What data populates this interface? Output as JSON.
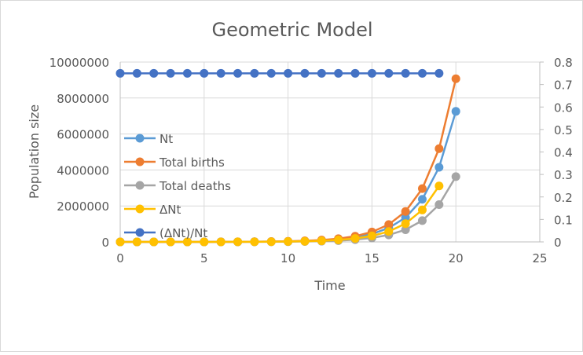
{
  "chart_data": {
    "type": "line",
    "title": "Geometric Model",
    "xlabel": "Time",
    "ylabel": "Population size",
    "xlim": [
      0,
      25
    ],
    "ylim": [
      0,
      10000000
    ],
    "y2lim": [
      0,
      0.8
    ],
    "x_ticks": [
      "0",
      "5",
      "10",
      "15",
      "20",
      "25"
    ],
    "y_ticks": [
      "0",
      "2000000",
      "4000000",
      "6000000",
      "8000000",
      "10000000"
    ],
    "y2_ticks": [
      "0",
      "0.1",
      "0.2",
      "0.3",
      "0.4",
      "0.5",
      "0.6",
      "0.7",
      "0.8"
    ],
    "grid": true,
    "legend_position": "left-inside",
    "series": [
      {
        "name": "Nt",
        "color": "#5B9BD5",
        "axis": "left",
        "x": [
          0,
          1,
          2,
          3,
          4,
          5,
          6,
          7,
          8,
          9,
          10,
          11,
          12,
          13,
          14,
          15,
          16,
          17,
          18,
          19,
          20
        ],
        "values": [
          100,
          175,
          306,
          536,
          938,
          1641,
          2872,
          5027,
          8796,
          15394,
          26939,
          47143,
          82501,
          144377,
          252659,
          442153,
          773768,
          1354094,
          2369664,
          4146912,
          7257097
        ]
      },
      {
        "name": "Total births",
        "color": "#ED7D31",
        "axis": "left",
        "x": [
          0,
          1,
          2,
          3,
          4,
          5,
          6,
          7,
          8,
          9,
          10,
          11,
          12,
          13,
          14,
          15,
          16,
          17,
          18,
          19,
          20
        ],
        "values": [
          125,
          219,
          383,
          670,
          1172,
          2052,
          3590,
          6283,
          10996,
          19242,
          33674,
          58929,
          103126,
          180471,
          315824,
          552691,
          967210,
          1692617,
          2962080,
          5183640,
          9071371
        ]
      },
      {
        "name": "Total deaths",
        "color": "#A5A5A5",
        "axis": "left",
        "x": [
          0,
          1,
          2,
          3,
          4,
          5,
          6,
          7,
          8,
          9,
          10,
          11,
          12,
          13,
          14,
          15,
          16,
          17,
          18,
          19,
          20
        ],
        "values": [
          50,
          88,
          153,
          268,
          469,
          821,
          1436,
          2513,
          4398,
          7697,
          13470,
          23572,
          41251,
          72189,
          126330,
          221077,
          386884,
          677047,
          1184832,
          2073456,
          3628549
        ]
      },
      {
        "name": "ΔNt",
        "color": "#FFC000",
        "axis": "left",
        "x": [
          0,
          1,
          2,
          3,
          4,
          5,
          6,
          7,
          8,
          9,
          10,
          11,
          12,
          13,
          14,
          15,
          16,
          17,
          18,
          19
        ],
        "values": [
          75,
          131,
          230,
          402,
          703,
          1231,
          2154,
          3770,
          6597,
          11545,
          20204,
          35357,
          61876,
          108283,
          189494,
          331615,
          580326,
          1015571,
          1777248,
          3110184
        ]
      },
      {
        "name": "(ΔNt)/Nt",
        "color": "#4472C4",
        "axis": "right",
        "x": [
          0,
          1,
          2,
          3,
          4,
          5,
          6,
          7,
          8,
          9,
          10,
          11,
          12,
          13,
          14,
          15,
          16,
          17,
          18,
          19
        ],
        "values": [
          0.75,
          0.75,
          0.75,
          0.75,
          0.75,
          0.75,
          0.75,
          0.75,
          0.75,
          0.75,
          0.75,
          0.75,
          0.75,
          0.75,
          0.75,
          0.75,
          0.75,
          0.75,
          0.75,
          0.75
        ]
      }
    ]
  }
}
